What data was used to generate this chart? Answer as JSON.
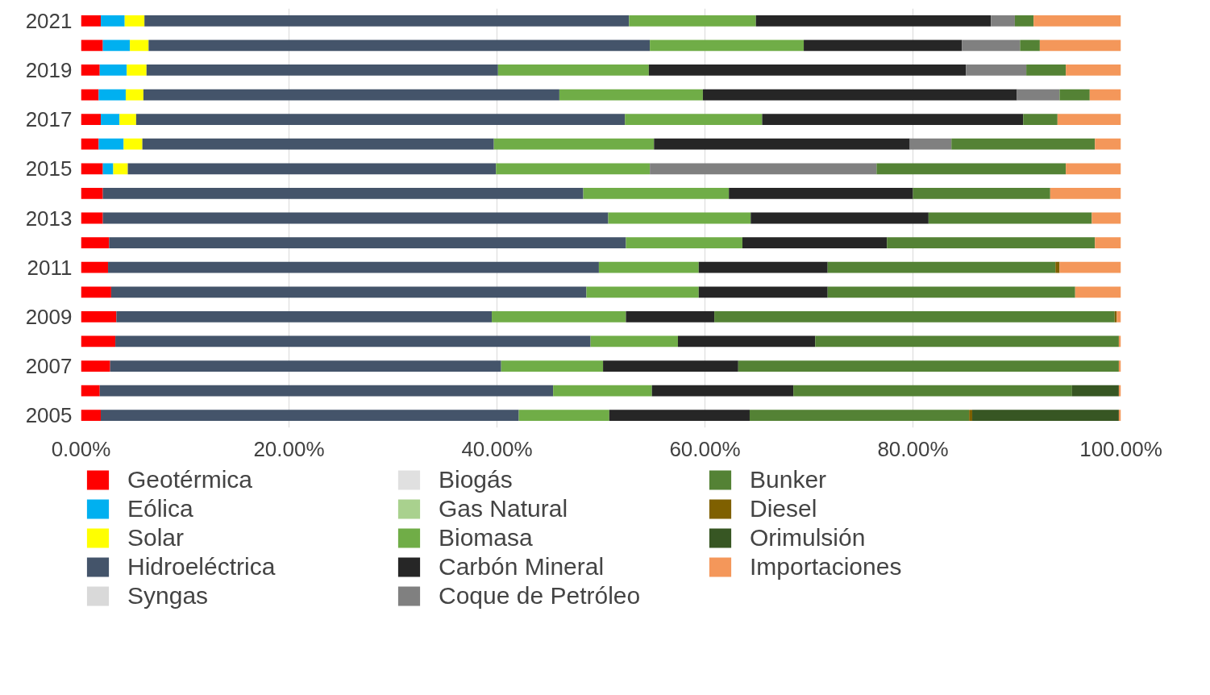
{
  "chart_data": {
    "type": "bar",
    "orientation": "horizontal",
    "stacked": true,
    "categories": [
      "2021",
      null,
      "2019",
      null,
      "2017",
      null,
      "2015",
      null,
      "2013",
      null,
      "2011",
      null,
      "2009",
      null,
      "2007",
      null,
      "2005"
    ],
    "xlim": [
      0,
      100
    ],
    "xticks": [
      {
        "value": 0,
        "label": "0.00%"
      },
      {
        "value": 20,
        "label": "20.00%"
      },
      {
        "value": 40,
        "label": "40.00%"
      },
      {
        "value": 60,
        "label": "60.00%"
      },
      {
        "value": 80,
        "label": "80.00%"
      },
      {
        "value": 100,
        "label": "100.00%"
      }
    ],
    "grid": "x",
    "legend": "bottom",
    "series": [
      {
        "name": "Geotérmica",
        "color": "#ff0000",
        "values": [
          1.9,
          2.1,
          1.8,
          1.7,
          1.9,
          1.7,
          2.1,
          2.1,
          2.1,
          2.7,
          2.6,
          2.9,
          3.4,
          3.3,
          2.8,
          1.8,
          1.9
        ]
      },
      {
        "name": "Eólica",
        "color": "#00b0f0",
        "values": [
          2.3,
          2.6,
          2.6,
          2.6,
          1.8,
          2.4,
          1.0,
          null,
          null,
          null,
          null,
          null,
          null,
          null,
          null,
          null,
          null
        ]
      },
      {
        "name": "Solar",
        "color": "#ffff00",
        "values": [
          1.9,
          1.8,
          1.9,
          1.7,
          1.6,
          1.8,
          1.4,
          null,
          null,
          null,
          null,
          null,
          null,
          null,
          null,
          null,
          null
        ]
      },
      {
        "name": "Hidroeléctrica",
        "color": "#44546a",
        "values": [
          46.6,
          48.2,
          33.8,
          40.0,
          47.0,
          33.8,
          35.4,
          46.2,
          48.6,
          49.7,
          47.2,
          45.7,
          36.1,
          45.7,
          37.6,
          43.6,
          40.2
        ]
      },
      {
        "name": "Syngas",
        "color": "#d9d9d9",
        "values": [
          null,
          null,
          null,
          null,
          null,
          null,
          null,
          null,
          null,
          null,
          null,
          null,
          null,
          null,
          null,
          null,
          null
        ]
      },
      {
        "name": "Biogás",
        "color": "#e0e0e0",
        "values": [
          null,
          null,
          null,
          null,
          null,
          null,
          null,
          null,
          null,
          null,
          null,
          null,
          null,
          null,
          null,
          null,
          null
        ]
      },
      {
        "name": "Gas Natural",
        "color": "#a9d18e",
        "values": [
          null,
          null,
          null,
          null,
          null,
          null,
          null,
          null,
          null,
          null,
          null,
          null,
          null,
          null,
          null,
          null,
          null
        ]
      },
      {
        "name": "Biomasa",
        "color": "#70ad47",
        "values": [
          12.2,
          14.8,
          14.5,
          13.8,
          13.2,
          15.4,
          14.8,
          14.0,
          13.7,
          11.2,
          9.6,
          10.8,
          12.9,
          8.4,
          9.8,
          9.5,
          8.7
        ]
      },
      {
        "name": "Carbón Mineral",
        "color": "#262626",
        "values": [
          22.6,
          15.2,
          30.5,
          30.2,
          25.1,
          24.6,
          null,
          17.7,
          17.1,
          13.9,
          12.4,
          12.4,
          8.5,
          13.2,
          13.0,
          13.6,
          13.5
        ]
      },
      {
        "name": "Coque de Petróleo",
        "color": "#808080",
        "values": [
          2.3,
          5.6,
          5.8,
          4.1,
          null,
          4.0,
          21.8,
          null,
          null,
          null,
          null,
          null,
          null,
          null,
          null,
          null,
          null
        ]
      },
      {
        "name": "Bunker",
        "color": "#548235",
        "values": [
          1.8,
          1.9,
          3.8,
          2.9,
          3.3,
          13.8,
          18.2,
          13.2,
          15.7,
          20.0,
          21.9,
          23.8,
          38.5,
          29.2,
          36.6,
          26.8,
          21.1
        ]
      },
      {
        "name": "Diesel",
        "color": "#7f6000",
        "values": [
          null,
          null,
          null,
          null,
          null,
          null,
          null,
          null,
          null,
          null,
          0.4,
          null,
          0.2,
          null,
          null,
          null,
          0.3
        ]
      },
      {
        "name": "Orimulsión",
        "color": "#375623",
        "values": [
          null,
          null,
          null,
          null,
          null,
          null,
          null,
          null,
          null,
          null,
          null,
          null,
          null,
          null,
          null,
          4.5,
          14.1
        ]
      },
      {
        "name": "Importaciones",
        "color": "#f4975a",
        "values": [
          8.4,
          7.8,
          5.3,
          3.0,
          6.1,
          2.5,
          5.3,
          6.8,
          2.8,
          2.5,
          5.9,
          4.4,
          0.4,
          0.2,
          0.2,
          0.2,
          0.2
        ]
      }
    ]
  }
}
